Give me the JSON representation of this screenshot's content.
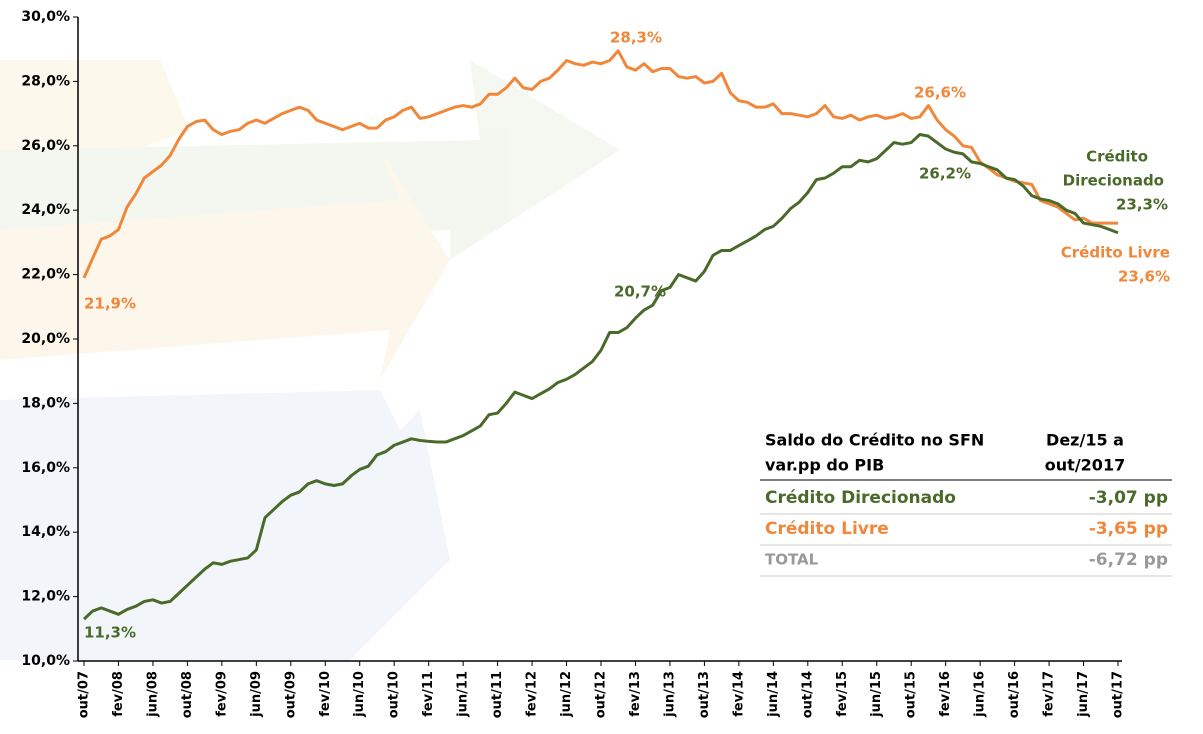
{
  "chart_data": {
    "type": "line",
    "categories": [
      "out/07",
      null,
      null,
      null,
      "fev/08",
      null,
      null,
      null,
      "jun/08",
      null,
      null,
      null,
      "out/08",
      null,
      null,
      null,
      "fev/09",
      null,
      null,
      null,
      "jun/09",
      null,
      null,
      null,
      "out/09",
      null,
      null,
      null,
      "fev/10",
      null,
      null,
      null,
      "jun/10",
      null,
      null,
      null,
      "out/10",
      null,
      null,
      null,
      "fev/11",
      null,
      null,
      null,
      "jun/11",
      null,
      null,
      null,
      "out/11",
      null,
      null,
      null,
      "fev/12",
      null,
      null,
      null,
      "jun/12",
      null,
      null,
      null,
      "out/12",
      null,
      null,
      null,
      "fev/13",
      null,
      null,
      null,
      "jun/13",
      null,
      null,
      null,
      "out/13",
      null,
      null,
      null,
      "fev/14",
      null,
      null,
      null,
      "jun/14",
      null,
      null,
      null,
      "out/14",
      null,
      null,
      null,
      "fev/15",
      null,
      null,
      null,
      "jun/15",
      null,
      null,
      null,
      "out/15",
      null,
      null,
      null,
      "fev/16",
      null,
      null,
      null,
      "jun/16",
      null,
      null,
      null,
      "out/16",
      null,
      null,
      null,
      "fev/17",
      null,
      null,
      null,
      "jun/17",
      null,
      null,
      null,
      "out/17"
    ],
    "series": [
      {
        "name": "Crédito Livre",
        "color": "#f0873a",
        "values": [
          21.9,
          22.5,
          23.1,
          23.2,
          23.4,
          24.1,
          24.5,
          25.0,
          25.2,
          25.4,
          25.7,
          26.2,
          26.6,
          26.75,
          26.8,
          26.5,
          26.35,
          26.45,
          26.5,
          26.7,
          26.8,
          26.7,
          26.85,
          27.0,
          27.1,
          27.2,
          27.1,
          26.8,
          26.7,
          26.6,
          26.5,
          26.6,
          26.7,
          26.55,
          26.55,
          26.8,
          26.9,
          27.1,
          27.2,
          26.85,
          26.9,
          27.0,
          27.1,
          27.2,
          27.25,
          27.2,
          27.3,
          27.6,
          27.6,
          27.8,
          28.1,
          27.8,
          27.75,
          28.0,
          28.1,
          28.35,
          28.65,
          28.55,
          28.5,
          28.6,
          28.55,
          28.65,
          28.95,
          28.45,
          28.35,
          28.55,
          28.3,
          28.4,
          28.4,
          28.15,
          28.1,
          28.15,
          27.95,
          28.0,
          28.25,
          27.65,
          27.4,
          27.35,
          27.2,
          27.2,
          27.3,
          27.0,
          27.0,
          26.95,
          26.9,
          27.0,
          27.25,
          26.9,
          26.85,
          26.95,
          26.8,
          26.9,
          26.95,
          26.85,
          26.9,
          27.0,
          26.85,
          26.9,
          27.25,
          26.8,
          26.5,
          26.3,
          26.0,
          25.95,
          25.5,
          25.3,
          25.1,
          25.0,
          24.9,
          24.85,
          24.8,
          24.3,
          24.2,
          24.1,
          23.9,
          23.7,
          23.75,
          23.6,
          23.6,
          23.6,
          23.6
        ]
      },
      {
        "name": "Crédito Direcionado",
        "color": "#4a6a2a",
        "values": [
          11.3,
          11.55,
          11.65,
          11.55,
          11.45,
          11.6,
          11.7,
          11.85,
          11.9,
          11.8,
          11.85,
          12.1,
          12.35,
          12.6,
          12.85,
          13.05,
          13.0,
          13.1,
          13.15,
          13.2,
          13.45,
          14.45,
          14.7,
          14.95,
          15.15,
          15.25,
          15.5,
          15.6,
          15.5,
          15.45,
          15.5,
          15.75,
          15.95,
          16.05,
          16.4,
          16.5,
          16.7,
          16.8,
          16.9,
          16.85,
          16.82,
          16.8,
          16.8,
          16.9,
          17.0,
          17.15,
          17.3,
          17.65,
          17.7,
          18.0,
          18.35,
          18.25,
          18.15,
          18.3,
          18.45,
          18.65,
          18.75,
          18.9,
          19.1,
          19.3,
          19.65,
          20.2,
          20.2,
          20.35,
          20.65,
          20.9,
          21.05,
          21.5,
          21.6,
          22.0,
          21.9,
          21.8,
          22.1,
          22.6,
          22.75,
          22.75,
          22.9,
          23.05,
          23.2,
          23.4,
          23.5,
          23.75,
          24.05,
          24.25,
          24.55,
          24.95,
          25.0,
          25.15,
          25.35,
          25.35,
          25.55,
          25.5,
          25.6,
          25.85,
          26.1,
          26.05,
          26.1,
          26.35,
          26.3,
          26.1,
          25.9,
          25.8,
          25.75,
          25.5,
          25.45,
          25.35,
          25.25,
          25.0,
          24.95,
          24.75,
          24.45,
          24.35,
          24.3,
          24.2,
          24.0,
          23.9,
          23.6,
          23.55,
          23.5,
          23.4,
          23.3
        ]
      }
    ],
    "ylim": [
      10,
      30
    ],
    "yticks": [
      {
        "value": 10,
        "label": "10,0%"
      },
      {
        "value": 12,
        "label": "12,0%"
      },
      {
        "value": 14,
        "label": "14,0%"
      },
      {
        "value": 16,
        "label": "16,0%"
      },
      {
        "value": 18,
        "label": "18,0%"
      },
      {
        "value": 20,
        "label": "20,0%"
      },
      {
        "value": 22,
        "label": "22,0%"
      },
      {
        "value": 24,
        "label": "24,0%"
      },
      {
        "value": 26,
        "label": "26,0%"
      },
      {
        "value": 28,
        "label": "28,0%"
      },
      {
        "value": 30,
        "label": "30,0%"
      }
    ],
    "annotations": [
      {
        "lines": [
          "21,9%"
        ]
      },
      {
        "lines": [
          "28,3%"
        ]
      },
      {
        "lines": [
          "26,6%"
        ]
      },
      {
        "lines": [
          "11,3%"
        ]
      },
      {
        "lines": [
          "20,7%"
        ]
      },
      {
        "lines": [
          "26,2%"
        ]
      },
      {
        "lines": [
          "Crédito",
          "Direcionado",
          "23,3%"
        ]
      },
      {
        "lines": [
          "Crédito Livre",
          "23,6%"
        ]
      }
    ],
    "table": {
      "header": [
        [
          "Saldo do Crédito no SFN",
          "var.pp do PIB"
        ],
        [
          "Dez/15 a",
          "out/2017"
        ]
      ],
      "rows": [
        {
          "name": "Crédito Direcionado",
          "value": "-3,07 pp",
          "color": "#4a6a2a"
        },
        {
          "name": "Crédito Livre",
          "value": "-3,65 pp",
          "color": "#f0873a"
        },
        {
          "name": "TOTAL",
          "value": "-6,72 pp",
          "color": "#999999"
        }
      ]
    }
  }
}
